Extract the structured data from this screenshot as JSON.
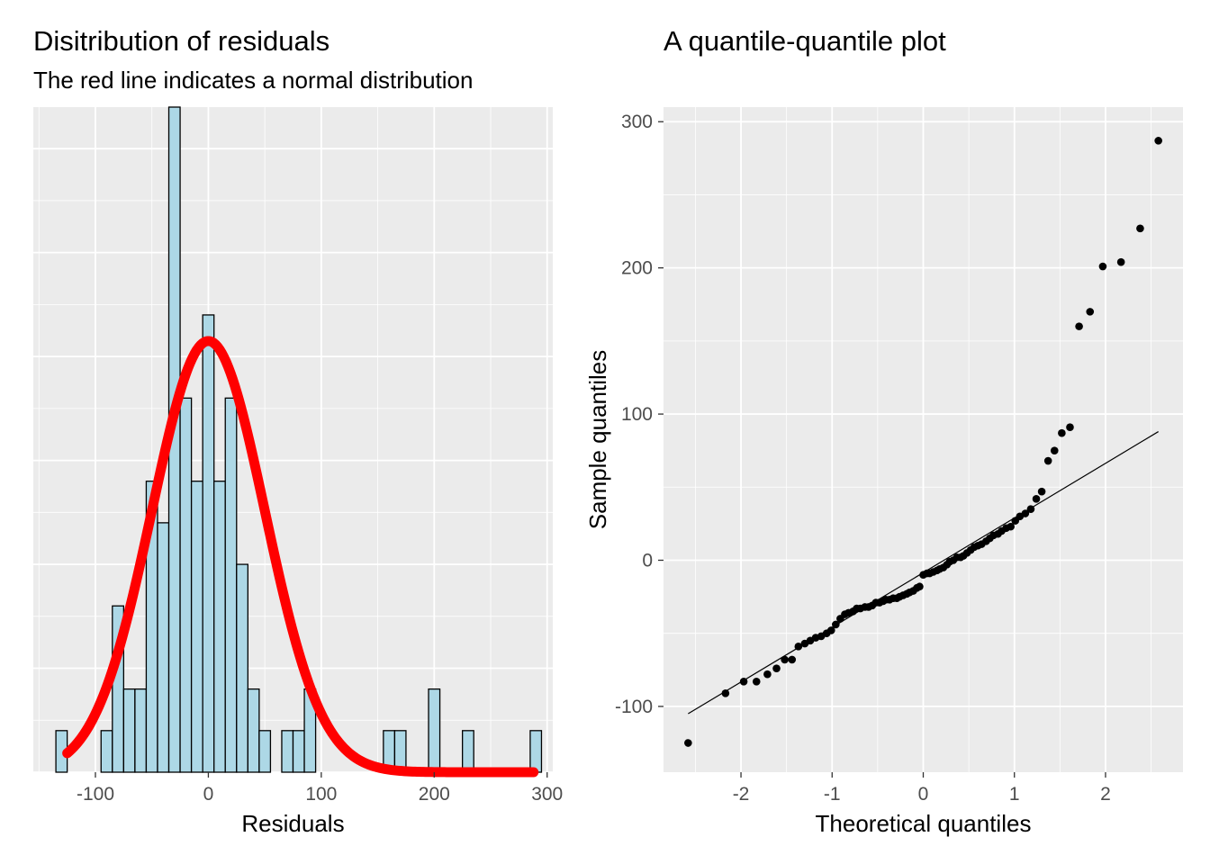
{
  "chart_data": [
    {
      "type": "bar",
      "title": "Disitribution of residuals",
      "subtitle": "The red line indicates a normal distribution",
      "xlabel": "Residuals",
      "ylabel": "",
      "xlim": [
        -155,
        305
      ],
      "ylim": [
        0,
        16
      ],
      "x_ticks": [
        -100,
        0,
        100,
        200,
        300
      ],
      "x_tick_labels": [
        "-100",
        "0",
        "100",
        "200",
        "300"
      ],
      "y_ticks": [
        0,
        2.5,
        5,
        7.5,
        10,
        12.5,
        15
      ],
      "grid": true,
      "bar_fill": "#add8e6",
      "bar_stroke": "#000000",
      "curve_color": "#ff0000",
      "bin_width": 10,
      "bins": [
        {
          "x": -130,
          "count": 1
        },
        {
          "x": -120,
          "count": 0
        },
        {
          "x": -110,
          "count": 0
        },
        {
          "x": -100,
          "count": 0
        },
        {
          "x": -90,
          "count": 1
        },
        {
          "x": -80,
          "count": 4
        },
        {
          "x": -70,
          "count": 2
        },
        {
          "x": -60,
          "count": 2
        },
        {
          "x": -50,
          "count": 7
        },
        {
          "x": -40,
          "count": 6
        },
        {
          "x": -30,
          "count": 16
        },
        {
          "x": -20,
          "count": 9
        },
        {
          "x": -10,
          "count": 7
        },
        {
          "x": 0,
          "count": 11
        },
        {
          "x": 10,
          "count": 7
        },
        {
          "x": 20,
          "count": 9
        },
        {
          "x": 30,
          "count": 5
        },
        {
          "x": 40,
          "count": 2
        },
        {
          "x": 50,
          "count": 1
        },
        {
          "x": 60,
          "count": 0
        },
        {
          "x": 70,
          "count": 1
        },
        {
          "x": 80,
          "count": 1
        },
        {
          "x": 90,
          "count": 2
        },
        {
          "x": 100,
          "count": 0
        },
        {
          "x": 110,
          "count": 0
        },
        {
          "x": 120,
          "count": 0
        },
        {
          "x": 130,
          "count": 0
        },
        {
          "x": 140,
          "count": 0
        },
        {
          "x": 150,
          "count": 0
        },
        {
          "x": 160,
          "count": 1
        },
        {
          "x": 170,
          "count": 1
        },
        {
          "x": 180,
          "count": 0
        },
        {
          "x": 190,
          "count": 0
        },
        {
          "x": 200,
          "count": 2
        },
        {
          "x": 210,
          "count": 0
        },
        {
          "x": 220,
          "count": 0
        },
        {
          "x": 230,
          "count": 1
        },
        {
          "x": 240,
          "count": 0
        },
        {
          "x": 250,
          "count": 0
        },
        {
          "x": 260,
          "count": 0
        },
        {
          "x": 270,
          "count": 0
        },
        {
          "x": 280,
          "count": 0
        },
        {
          "x": 290,
          "count": 1
        }
      ],
      "normal_curve": {
        "mean": 0,
        "sd": 50,
        "scale": 1300,
        "x_range": [
          -125,
          288
        ]
      }
    },
    {
      "type": "scatter",
      "title": "A quantile-quantile plot",
      "xlabel": "Theoretical quantiles",
      "ylabel": "Sample quantiles",
      "xlim": [
        -2.85,
        2.85
      ],
      "ylim": [
        -145,
        310
      ],
      "x_ticks": [
        -2,
        -1,
        0,
        1,
        2
      ],
      "x_tick_labels": [
        "-2",
        "-1",
        "0",
        "1",
        "2"
      ],
      "y_ticks": [
        -100,
        0,
        100,
        200,
        300
      ],
      "y_tick_labels": [
        "-100",
        "0",
        "100",
        "200",
        "300"
      ],
      "grid": true,
      "point_color": "#000000",
      "reference_line": {
        "x": [
          -2.58,
          2.58
        ],
        "y": [
          -105,
          88
        ]
      },
      "points": [
        [
          -2.58,
          -125
        ],
        [
          -2.17,
          -91
        ],
        [
          -1.97,
          -83
        ],
        [
          -1.83,
          -83
        ],
        [
          -1.71,
          -78
        ],
        [
          -1.61,
          -74
        ],
        [
          -1.52,
          -68
        ],
        [
          -1.44,
          -68
        ],
        [
          -1.37,
          -59
        ],
        [
          -1.3,
          -57
        ],
        [
          -1.24,
          -55
        ],
        [
          -1.18,
          -53
        ],
        [
          -1.12,
          -52
        ],
        [
          -1.06,
          -50
        ],
        [
          -1.01,
          -48
        ],
        [
          -0.96,
          -44
        ],
        [
          -0.91,
          -40
        ],
        [
          -0.86,
          -37
        ],
        [
          -0.82,
          -36
        ],
        [
          -0.77,
          -35
        ],
        [
          -0.73,
          -33
        ],
        [
          -0.69,
          -33
        ],
        [
          -0.64,
          -32
        ],
        [
          -0.6,
          -32
        ],
        [
          -0.56,
          -31
        ],
        [
          -0.52,
          -29
        ],
        [
          -0.48,
          -29
        ],
        [
          -0.44,
          -28
        ],
        [
          -0.41,
          -27
        ],
        [
          -0.37,
          -27
        ],
        [
          -0.33,
          -26
        ],
        [
          -0.29,
          -26
        ],
        [
          -0.26,
          -25
        ],
        [
          -0.22,
          -24
        ],
        [
          -0.18,
          -23
        ],
        [
          -0.15,
          -22
        ],
        [
          -0.11,
          -21
        ],
        [
          -0.07,
          -19
        ],
        [
          -0.04,
          -18
        ],
        [
          0.0,
          -10
        ],
        [
          0.04,
          -9
        ],
        [
          0.07,
          -9
        ],
        [
          0.11,
          -8
        ],
        [
          0.15,
          -7
        ],
        [
          0.18,
          -6
        ],
        [
          0.22,
          -5
        ],
        [
          0.26,
          -3
        ],
        [
          0.29,
          -1
        ],
        [
          0.33,
          0
        ],
        [
          0.37,
          2
        ],
        [
          0.41,
          2
        ],
        [
          0.44,
          3
        ],
        [
          0.48,
          5
        ],
        [
          0.52,
          7
        ],
        [
          0.56,
          9
        ],
        [
          0.6,
          10
        ],
        [
          0.64,
          11
        ],
        [
          0.69,
          13
        ],
        [
          0.73,
          15
        ],
        [
          0.77,
          17
        ],
        [
          0.82,
          18
        ],
        [
          0.86,
          20
        ],
        [
          0.91,
          22
        ],
        [
          0.96,
          23
        ],
        [
          1.01,
          27
        ],
        [
          1.06,
          30
        ],
        [
          1.12,
          32
        ],
        [
          1.18,
          35
        ],
        [
          1.24,
          42
        ],
        [
          1.3,
          47
        ],
        [
          1.37,
          68
        ],
        [
          1.44,
          75
        ],
        [
          1.52,
          87
        ],
        [
          1.61,
          91
        ],
        [
          1.71,
          160
        ],
        [
          1.83,
          170
        ],
        [
          1.97,
          201
        ],
        [
          2.17,
          204
        ],
        [
          2.38,
          227
        ],
        [
          2.58,
          287
        ]
      ]
    }
  ]
}
